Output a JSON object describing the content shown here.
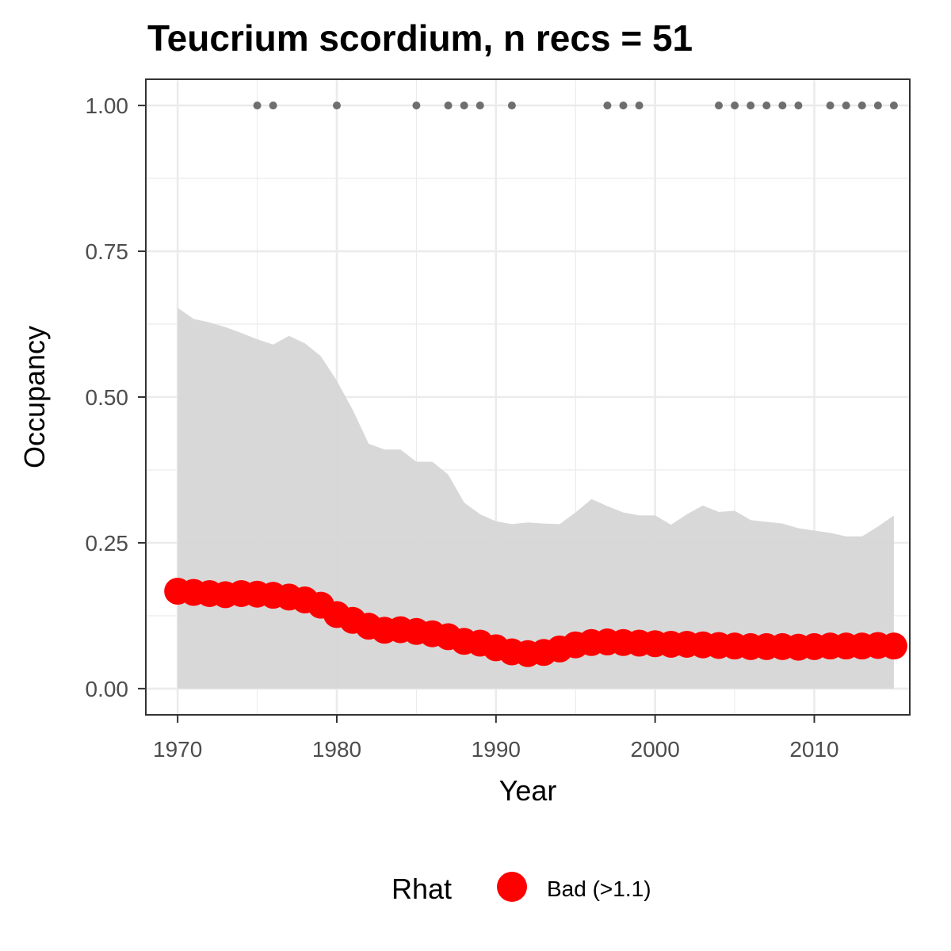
{
  "chart_data": {
    "type": "line",
    "title": "Teucrium scordium, n recs = 51",
    "xlabel": "Year",
    "ylabel": "Occupancy",
    "xlim": [
      1968,
      2016
    ],
    "ylim": [
      -0.045,
      1.045
    ],
    "x_ticks": [
      1970,
      1980,
      1990,
      2000,
      2010
    ],
    "x_tick_labels": [
      "1970",
      "1980",
      "1990",
      "2000",
      "2010"
    ],
    "y_ticks": [
      0,
      0.25,
      0.5,
      0.75,
      1.0
    ],
    "y_tick_labels": [
      "0.00",
      "0.25",
      "0.50",
      "0.75",
      "1.00"
    ],
    "grid": true,
    "legend_position": "bottom",
    "legend": {
      "title": "Rhat",
      "entries": [
        {
          "label": "Bad (>1.1)",
          "color": "#ff0000"
        }
      ]
    },
    "colors": {
      "estimate": "#ff0000",
      "ribbon": "#d6d6d6",
      "records": "#6e6e6e",
      "grid": "#ebebeb",
      "panel_border": "#333333"
    },
    "x": [
      1970,
      1971,
      1972,
      1973,
      1974,
      1975,
      1976,
      1977,
      1978,
      1979,
      1980,
      1981,
      1982,
      1983,
      1984,
      1985,
      1986,
      1987,
      1988,
      1989,
      1990,
      1991,
      1992,
      1993,
      1994,
      1995,
      1996,
      1997,
      1998,
      1999,
      2000,
      2001,
      2002,
      2003,
      2004,
      2005,
      2006,
      2007,
      2008,
      2009,
      2010,
      2011,
      2012,
      2013,
      2014,
      2015
    ],
    "series": [
      {
        "name": "Bad (>1.1)",
        "values": [
          0.167,
          0.165,
          0.163,
          0.161,
          0.163,
          0.162,
          0.16,
          0.157,
          0.152,
          0.143,
          0.127,
          0.117,
          0.107,
          0.1,
          0.101,
          0.098,
          0.094,
          0.089,
          0.081,
          0.078,
          0.07,
          0.063,
          0.06,
          0.062,
          0.068,
          0.075,
          0.079,
          0.08,
          0.079,
          0.078,
          0.077,
          0.076,
          0.076,
          0.075,
          0.074,
          0.073,
          0.072,
          0.072,
          0.072,
          0.071,
          0.072,
          0.073,
          0.073,
          0.073,
          0.074,
          0.073
        ]
      }
    ],
    "ribbon": {
      "upper": [
        0.653,
        0.634,
        0.628,
        0.62,
        0.61,
        0.599,
        0.59,
        0.605,
        0.592,
        0.57,
        0.528,
        0.478,
        0.42,
        0.41,
        0.41,
        0.389,
        0.389,
        0.367,
        0.319,
        0.299,
        0.287,
        0.282,
        0.285,
        0.283,
        0.282,
        0.302,
        0.325,
        0.313,
        0.302,
        0.297,
        0.297,
        0.281,
        0.299,
        0.314,
        0.303,
        0.305,
        0.289,
        0.286,
        0.283,
        0.275,
        0.271,
        0.267,
        0.261,
        0.261,
        0.278,
        0.297
      ],
      "lower": [
        0,
        0,
        0,
        0,
        0,
        0,
        0,
        0,
        0,
        0,
        0,
        0,
        0,
        0,
        0,
        0,
        0,
        0,
        0,
        0,
        0,
        0,
        0,
        0,
        0,
        0,
        0,
        0,
        0,
        0,
        0,
        0,
        0,
        0,
        0,
        0,
        0,
        0,
        0,
        0,
        0,
        0,
        0,
        0,
        0,
        0
      ]
    },
    "records": {
      "x": [
        1975,
        1976,
        1980,
        1985,
        1987,
        1988,
        1989,
        1991,
        1997,
        1998,
        1999,
        2004,
        2005,
        2006,
        2007,
        2008,
        2009,
        2011,
        2012,
        2013,
        2014,
        2015
      ],
      "y": 1.0
    }
  }
}
